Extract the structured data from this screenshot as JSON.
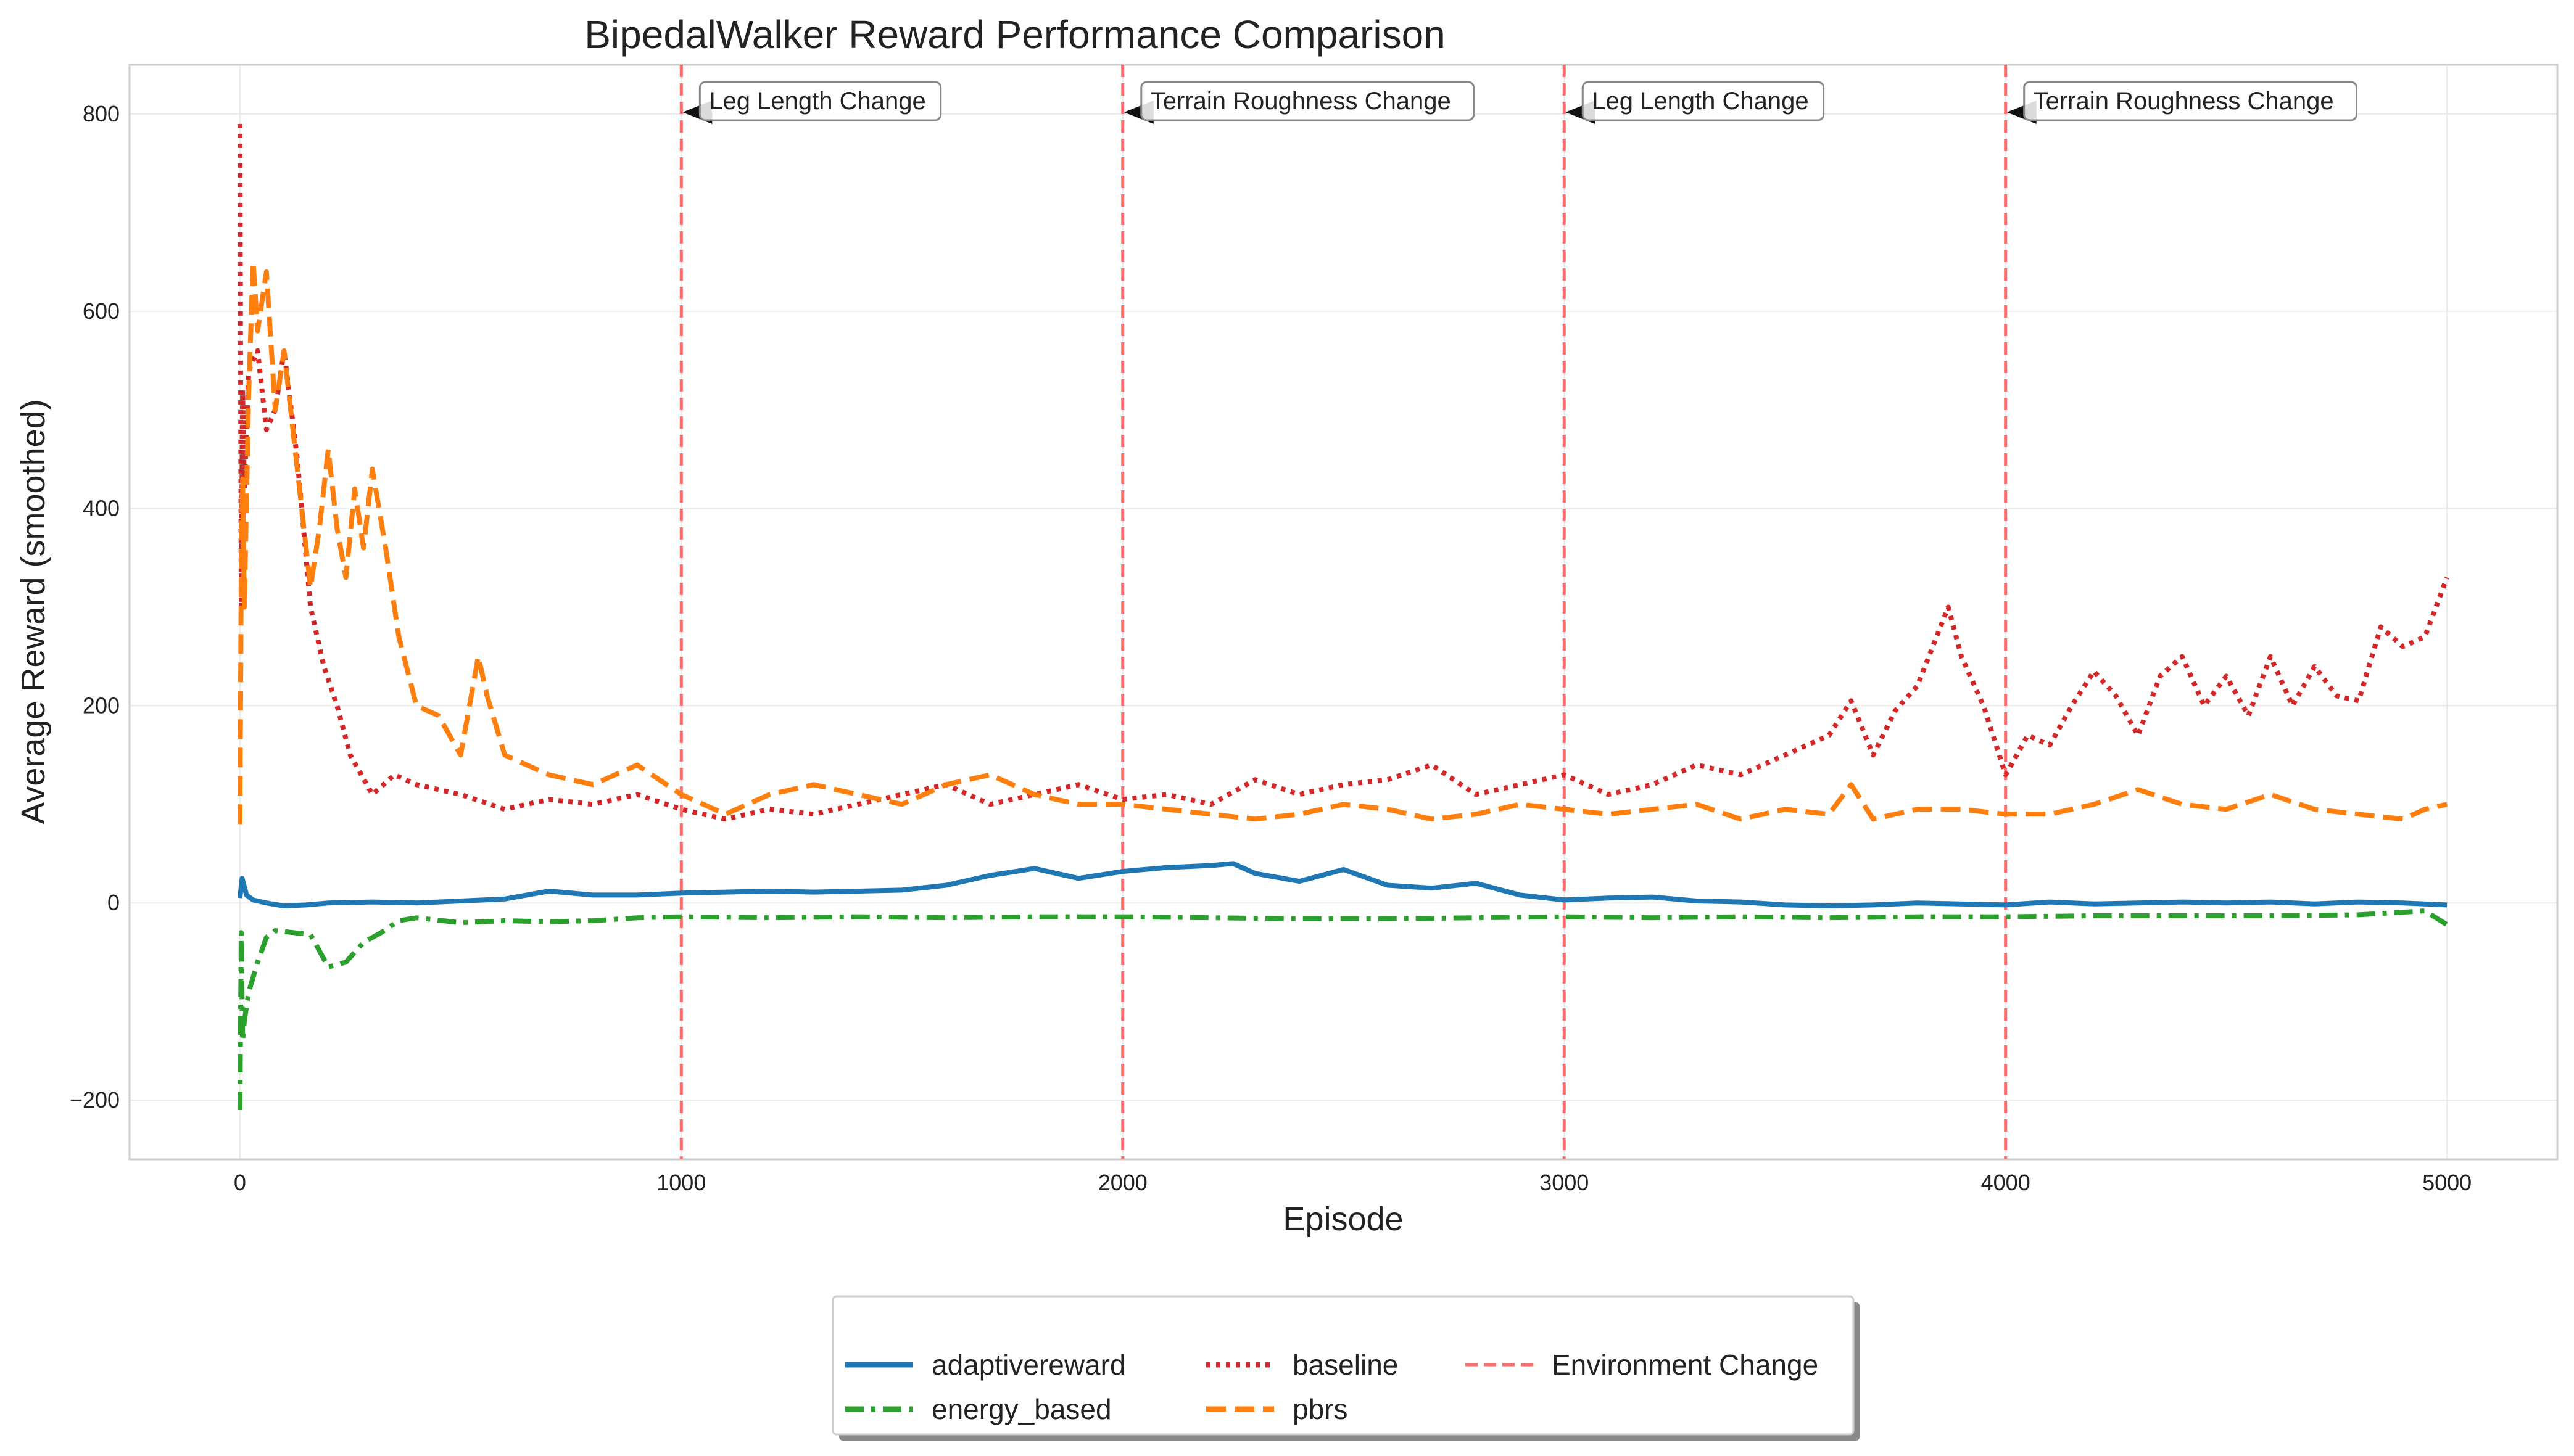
{
  "chart_data": {
    "type": "line",
    "title": "BipedalWalker Reward Performance Comparison",
    "xlabel": "Episode",
    "ylabel": "Average Reward (smoothed)",
    "xlim": [
      -250,
      5250
    ],
    "ylim": [
      -260,
      850
    ],
    "xticks": [
      0,
      1000,
      2000,
      3000,
      4000,
      5000
    ],
    "yticks": [
      -200,
      0,
      200,
      400,
      600,
      800
    ],
    "grid": true,
    "legend_position": "bottom-center",
    "series": [
      {
        "name": "adaptivereward",
        "color": "#1f77b4",
        "style": "solid",
        "x": [
          0,
          5,
          15,
          30,
          60,
          100,
          150,
          200,
          300,
          400,
          500,
          600,
          700,
          800,
          900,
          1000,
          1100,
          1200,
          1300,
          1400,
          1500,
          1600,
          1700,
          1800,
          1900,
          2000,
          2100,
          2200,
          2250,
          2300,
          2400,
          2500,
          2600,
          2700,
          2800,
          2900,
          3000,
          3100,
          3200,
          3300,
          3400,
          3500,
          3600,
          3700,
          3800,
          3900,
          4000,
          4100,
          4200,
          4300,
          4400,
          4500,
          4600,
          4700,
          4800,
          4900,
          5000
        ],
        "y": [
          5,
          25,
          8,
          3,
          0,
          -3,
          -2,
          0,
          1,
          0,
          2,
          4,
          12,
          8,
          8,
          10,
          11,
          12,
          11,
          12,
          13,
          18,
          28,
          35,
          25,
          32,
          36,
          38,
          40,
          30,
          22,
          34,
          18,
          15,
          20,
          8,
          3,
          5,
          6,
          2,
          1,
          -2,
          -3,
          -2,
          0,
          -1,
          -2,
          1,
          -1,
          0,
          1,
          0,
          1,
          -1,
          1,
          0,
          -2
        ]
      },
      {
        "name": "energy_based",
        "color": "#2ca02c",
        "style": "dashdot",
        "x": [
          0,
          3,
          6,
          10,
          20,
          40,
          60,
          80,
          120,
          160,
          200,
          240,
          280,
          320,
          360,
          400,
          500,
          600,
          700,
          800,
          900,
          1000,
          1200,
          1400,
          1600,
          1800,
          2000,
          2200,
          2400,
          2600,
          2800,
          3000,
          3200,
          3400,
          3600,
          3800,
          4000,
          4200,
          4400,
          4600,
          4800,
          4950,
          5000
        ],
        "y": [
          -210,
          -30,
          -140,
          -120,
          -90,
          -60,
          -35,
          -28,
          -30,
          -32,
          -65,
          -60,
          -40,
          -30,
          -18,
          -15,
          -20,
          -18,
          -19,
          -18,
          -15,
          -14,
          -15,
          -14,
          -15,
          -14,
          -14,
          -15,
          -16,
          -16,
          -15,
          -14,
          -15,
          -14,
          -15,
          -14,
          -14,
          -13,
          -13,
          -13,
          -12,
          -8,
          -22
        ]
      },
      {
        "name": "baseline",
        "color": "#d62728",
        "style": "dotted",
        "x": [
          0,
          3,
          6,
          10,
          20,
          40,
          60,
          80,
          100,
          130,
          160,
          190,
          220,
          250,
          300,
          350,
          400,
          500,
          600,
          700,
          800,
          900,
          1000,
          1100,
          1200,
          1300,
          1400,
          1500,
          1600,
          1700,
          1800,
          1900,
          2000,
          2100,
          2200,
          2300,
          2400,
          2500,
          2600,
          2700,
          2800,
          2900,
          3000,
          3100,
          3200,
          3300,
          3400,
          3500,
          3600,
          3650,
          3700,
          3750,
          3800,
          3870,
          3900,
          3950,
          4000,
          4050,
          4100,
          4150,
          4200,
          4250,
          4300,
          4350,
          4400,
          4450,
          4500,
          4550,
          4600,
          4650,
          4700,
          4750,
          4800,
          4850,
          4900,
          4950,
          5000
        ],
        "y": [
          790,
          300,
          520,
          420,
          540,
          560,
          480,
          500,
          560,
          450,
          300,
          240,
          200,
          150,
          110,
          130,
          120,
          110,
          95,
          105,
          100,
          110,
          95,
          85,
          95,
          90,
          100,
          110,
          120,
          100,
          110,
          120,
          105,
          110,
          100,
          125,
          110,
          120,
          125,
          140,
          110,
          120,
          130,
          110,
          120,
          140,
          130,
          150,
          170,
          205,
          150,
          195,
          220,
          300,
          250,
          200,
          130,
          170,
          160,
          200,
          235,
          210,
          170,
          230,
          250,
          200,
          230,
          190,
          250,
          200,
          240,
          210,
          205,
          280,
          260,
          270,
          330
        ]
      },
      {
        "name": "pbrs",
        "color": "#ff7f0e",
        "style": "dashed",
        "x": [
          0,
          3,
          6,
          10,
          20,
          30,
          40,
          60,
          80,
          100,
          120,
          140,
          160,
          180,
          200,
          220,
          240,
          260,
          280,
          300,
          330,
          360,
          400,
          450,
          500,
          540,
          560,
          600,
          650,
          700,
          800,
          900,
          1000,
          1100,
          1200,
          1300,
          1400,
          1500,
          1600,
          1700,
          1800,
          1900,
          2000,
          2100,
          2200,
          2300,
          2400,
          2500,
          2600,
          2700,
          2800,
          2900,
          3000,
          3100,
          3200,
          3300,
          3400,
          3500,
          3600,
          3650,
          3700,
          3800,
          3900,
          4000,
          4100,
          4200,
          4300,
          4400,
          4500,
          4600,
          4700,
          4800,
          4900,
          4950,
          5000
        ],
        "y": [
          80,
          340,
          430,
          300,
          520,
          650,
          580,
          640,
          500,
          560,
          480,
          400,
          320,
          380,
          460,
          380,
          330,
          420,
          360,
          440,
          360,
          270,
          200,
          190,
          150,
          250,
          210,
          150,
          140,
          130,
          120,
          140,
          110,
          90,
          110,
          120,
          110,
          100,
          120,
          130,
          110,
          100,
          100,
          95,
          90,
          85,
          90,
          100,
          95,
          85,
          90,
          100,
          95,
          90,
          95,
          100,
          85,
          95,
          90,
          120,
          85,
          95,
          95,
          90,
          90,
          100,
          115,
          100,
          95,
          110,
          95,
          90,
          85,
          95,
          100
        ]
      }
    ],
    "vlines": {
      "name": "Environment Change",
      "color": "#ff6b6b",
      "style": "dashed",
      "x": [
        1000,
        2000,
        3000,
        4000
      ]
    },
    "annotations": [
      {
        "x": 1000,
        "y": 800,
        "text": "Leg Length Change"
      },
      {
        "x": 2000,
        "y": 800,
        "text": "Terrain Roughness Change"
      },
      {
        "x": 3000,
        "y": 800,
        "text": "Leg Length Change"
      },
      {
        "x": 4000,
        "y": 800,
        "text": "Terrain Roughness Change"
      }
    ]
  }
}
